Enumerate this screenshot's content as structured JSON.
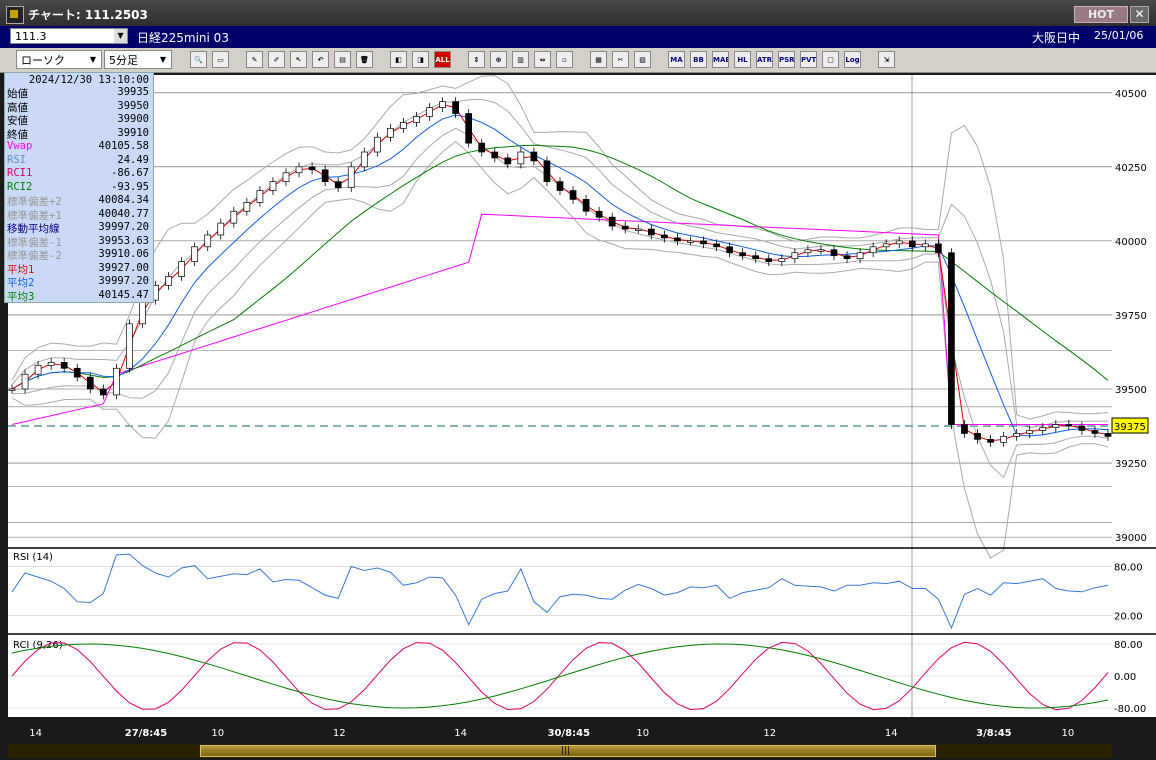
{
  "window": {
    "title": "チャート: 111.2503",
    "hot_label": "HOT",
    "close_label": "✕"
  },
  "symbol_bar": {
    "code": "111.3",
    "name": "日経225mini 03",
    "market": "大阪日中",
    "date": "25/01/06"
  },
  "toolbar": {
    "chart_type": "ローソク",
    "interval": "5分足",
    "text_buttons": [
      "ALL",
      "MA",
      "BB",
      "MAE",
      "HL",
      "ATR",
      "PSR",
      "PVT",
      "Log"
    ]
  },
  "info_panel": {
    "datetime": "2024/12/30 13:10:00",
    "rows": [
      {
        "label": "始値",
        "value": "39935",
        "color": "#000000"
      },
      {
        "label": "高値",
        "value": "39950",
        "color": "#000000"
      },
      {
        "label": "安値",
        "value": "39900",
        "color": "#000000"
      },
      {
        "label": "終値",
        "value": "39910",
        "color": "#000000"
      },
      {
        "label": "Vwap",
        "value": "40105.58",
        "color": "#ff00ff"
      },
      {
        "label": "RSI",
        "value": "24.49",
        "color": "#5b8fd0"
      },
      {
        "label": "RCI1",
        "value": "-86.67",
        "color": "#e0006a"
      },
      {
        "label": "RCI2",
        "value": "-93.95",
        "color": "#008000"
      },
      {
        "label": "標準偏差+2",
        "value": "40084.34",
        "color": "#999999"
      },
      {
        "label": "標準偏差+1",
        "value": "40040.77",
        "color": "#999999"
      },
      {
        "label": "移動平均線",
        "value": "39997.20",
        "color": "#000080"
      },
      {
        "label": "標準偏差-1",
        "value": "39953.63",
        "color": "#999999"
      },
      {
        "label": "標準偏差-2",
        "value": "39910.06",
        "color": "#999999"
      },
      {
        "label": "平均1",
        "value": "39927.00",
        "color": "#e00000"
      },
      {
        "label": "平均2",
        "value": "39997.20",
        "color": "#1060e0"
      },
      {
        "label": "平均3",
        "value": "40145.47",
        "color": "#008000"
      }
    ]
  },
  "chart_data": {
    "type": "line",
    "price_ticks": [
      "40500",
      "40250",
      "40000",
      "39750",
      "39500",
      "39250",
      "39000"
    ],
    "price_levels": [
      40500,
      40250,
      40000,
      39750,
      39500,
      39250,
      39000
    ],
    "ylim": [
      38970,
      40560
    ],
    "current_price_label": "39375",
    "current_price": 39375,
    "rsi_title": "RSI (14)",
    "rsi_ticks": [
      "80.00",
      "20.00"
    ],
    "rsi_levels": [
      80,
      20
    ],
    "rci_title": "RCI (9,26)",
    "rci_ticks": [
      "80.00",
      "0.00",
      "-80.00"
    ],
    "rci_levels": [
      80,
      0,
      -80
    ],
    "x_ticks": [
      "14",
      "27/8:45",
      "10",
      "12",
      "14",
      "30/8:45",
      "10",
      "12",
      "14",
      "3/8:45",
      "10"
    ],
    "x_tick_pos": [
      0.025,
      0.125,
      0.19,
      0.3,
      0.41,
      0.508,
      0.575,
      0.69,
      0.8,
      0.893,
      0.96
    ],
    "n_bars": 240,
    "close": [
      39500,
      39550,
      39580,
      39590,
      39570,
      39540,
      39500,
      39480,
      39570,
      39720,
      39800,
      39850,
      39880,
      39930,
      39980,
      40020,
      40060,
      40100,
      40130,
      40170,
      40200,
      40230,
      40250,
      40240,
      40200,
      40180,
      40250,
      40300,
      40350,
      40380,
      40400,
      40420,
      40450,
      40470,
      40430,
      40330,
      40300,
      40280,
      40260,
      40300,
      40270,
      40200,
      40170,
      40140,
      40100,
      40080,
      40050,
      40040,
      40040,
      40020,
      40010,
      40000,
      40000,
      39990,
      39980,
      39960,
      39950,
      39940,
      39930,
      39940,
      39960,
      39970,
      39970,
      39950,
      39940,
      39960,
      39980,
      39990,
      40000,
      39980,
      39990,
      39960,
      39380,
      39350,
      39330,
      39320,
      39340,
      39350,
      39360,
      39370,
      39380,
      39375,
      39360,
      39350,
      39340
    ]
  },
  "scrollbar": {
    "grip": "|||"
  }
}
